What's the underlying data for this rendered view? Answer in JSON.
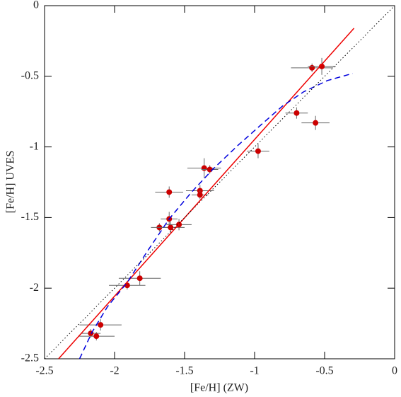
{
  "chart_data": {
    "type": "scatter",
    "x_label": "[Fe/H] (ZW)",
    "y_label": "[Fe/H] UVES",
    "xlim": [
      -2.5,
      0
    ],
    "ylim": [
      -2.5,
      0
    ],
    "xticks": [
      -2.5,
      -2,
      -1.5,
      -1,
      -0.5,
      0
    ],
    "yticks": [
      -2.5,
      -2,
      -1.5,
      -1,
      -0.5,
      0
    ],
    "series": [
      {
        "type": "scatter",
        "color": "#cc0000",
        "x": [
          -0.59,
          -0.52,
          -0.7,
          -0.565,
          -0.975,
          -1.36,
          -1.32,
          -1.61,
          -1.39,
          -1.39,
          -1.61,
          -1.68,
          -1.6,
          -1.54,
          -1.82,
          -1.91,
          -2.1,
          -2.17,
          -2.13
        ],
        "values": [
          -0.44,
          -0.43,
          -0.76,
          -0.83,
          -1.03,
          -1.15,
          -1.16,
          -1.32,
          -1.31,
          -1.34,
          -1.51,
          -1.57,
          -1.57,
          -1.55,
          -1.93,
          -1.98,
          -2.26,
          -2.32,
          -2.34
        ],
        "xerr": [
          0.15,
          0.1,
          0.08,
          0.1,
          0.08,
          0.12,
          0.06,
          0.1,
          0.1,
          0.06,
          0.06,
          0.06,
          0.1,
          0.09,
          0.15,
          0.13,
          0.15,
          0.07,
          0.13
        ],
        "yerr": [
          0.03,
          0.06,
          0.04,
          0.05,
          0.05,
          0.07,
          0.03,
          0.04,
          0.04,
          0.03,
          0.05,
          0.03,
          0.04,
          0.04,
          0.05,
          0.03,
          0.04,
          0.03,
          0.03
        ]
      },
      {
        "type": "line",
        "color": "#ee0000",
        "dash": "solid",
        "x": [
          -2.4,
          -0.29
        ],
        "values": [
          -2.5,
          -0.16
        ]
      },
      {
        "type": "line",
        "color": "#0000dd",
        "dash": "dashed",
        "x": [
          -2.25,
          -2.16,
          -2.05,
          -1.91,
          -1.76,
          -1.61,
          -1.45,
          -1.3,
          -1.12,
          -0.95,
          -0.8,
          -0.65,
          -0.48,
          -0.3
        ],
        "values": [
          -2.5,
          -2.31,
          -2.13,
          -1.96,
          -1.73,
          -1.51,
          -1.32,
          -1.16,
          -0.99,
          -0.84,
          -0.71,
          -0.61,
          -0.53,
          -0.48
        ]
      },
      {
        "type": "line",
        "color": "#000000",
        "dash": "dotted",
        "x": [
          -2.5,
          0
        ],
        "values": [
          -2.5,
          0
        ]
      }
    ]
  }
}
